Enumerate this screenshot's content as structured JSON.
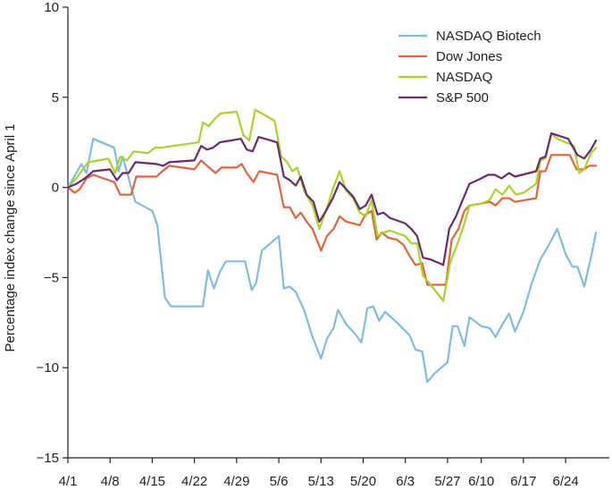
{
  "chart_data": {
    "type": "line",
    "title": "",
    "xlabel": "",
    "ylabel": "Percentage index change since April 1",
    "ylim": [
      -15,
      10
    ],
    "yticks": [
      10,
      5,
      0,
      -5,
      -10,
      -15
    ],
    "ytick_labels": [
      "10",
      "5",
      "0",
      "−5",
      "−10",
      "−15"
    ],
    "x_range": [
      0,
      61
    ],
    "xticks": [
      0,
      5,
      10,
      15,
      20,
      25,
      30,
      35,
      40,
      45,
      49,
      54,
      59
    ],
    "xtick_labels": [
      "4/1",
      "4/8",
      "4/15",
      "4/22",
      "4/29",
      "5/6",
      "5/13",
      "5/20",
      "6/3",
      "5/27",
      "6/10",
      "6/17",
      "6/24"
    ],
    "legend_position": "top-right",
    "series": [
      {
        "name": "NASDAQ Biotech",
        "color": "#7fbde0",
        "values": [
          [
            0,
            0
          ],
          [
            1,
            0.8
          ],
          [
            1.6,
            1.3
          ],
          [
            2.2,
            0.8
          ],
          [
            3,
            2.7
          ],
          [
            5.5,
            2.2
          ],
          [
            6,
            0.9
          ],
          [
            6.5,
            1.7
          ],
          [
            7.5,
            0
          ],
          [
            8,
            -0.8
          ],
          [
            10,
            -1.3
          ],
          [
            10.6,
            -2.1
          ],
          [
            11.5,
            -6.1
          ],
          [
            12.2,
            -6.6
          ],
          [
            16,
            -6.6
          ],
          [
            16.6,
            -4.6
          ],
          [
            17.3,
            -5.6
          ],
          [
            18,
            -4.7
          ],
          [
            18.7,
            -4.1
          ],
          [
            21,
            -4.1
          ],
          [
            21.8,
            -5.7
          ],
          [
            22.3,
            -5.3
          ],
          [
            23,
            -3.5
          ],
          [
            25,
            -2.7
          ],
          [
            25.6,
            -5.6
          ],
          [
            26.3,
            -5.5
          ],
          [
            27,
            -5.8
          ],
          [
            28,
            -6.8
          ],
          [
            29,
            -8.3
          ],
          [
            30,
            -9.5
          ],
          [
            30.7,
            -8.4
          ],
          [
            31.5,
            -7.8
          ],
          [
            32,
            -6.8
          ],
          [
            33,
            -7.6
          ],
          [
            34,
            -8.1
          ],
          [
            34.8,
            -8.6
          ],
          [
            35.5,
            -6.7
          ],
          [
            36.2,
            -6.6
          ],
          [
            36.9,
            -7.4
          ],
          [
            37.6,
            -6.9
          ],
          [
            39,
            -7.5
          ],
          [
            40.5,
            -8.2
          ],
          [
            41.2,
            -9.0
          ],
          [
            42,
            -9.1
          ],
          [
            42.6,
            -10.8
          ],
          [
            43.5,
            -10.3
          ],
          [
            45,
            -9.7
          ],
          [
            45.6,
            -7.7
          ],
          [
            46.2,
            -7.7
          ],
          [
            47,
            -8.8
          ],
          [
            47.6,
            -7.2
          ],
          [
            49,
            -7.7
          ],
          [
            50,
            -7.8
          ],
          [
            50.7,
            -8.3
          ],
          [
            51.5,
            -7.6
          ],
          [
            52.3,
            -7.0
          ],
          [
            53,
            -8.0
          ],
          [
            54,
            -6.9
          ],
          [
            55,
            -5.3
          ],
          [
            56,
            -4.0
          ],
          [
            57,
            -3.2
          ],
          [
            58,
            -2.3
          ],
          [
            59,
            -3.7
          ],
          [
            59.8,
            -4.4
          ],
          [
            60.4,
            -4.4
          ],
          [
            61.2,
            -5.5
          ],
          [
            62,
            -3.9
          ],
          [
            62.6,
            -2.5
          ]
        ]
      },
      {
        "name": "Dow Jones",
        "color": "#e4623c",
        "values": [
          [
            0,
            0
          ],
          [
            0.8,
            -0.3
          ],
          [
            1.4,
            -0.1
          ],
          [
            2.2,
            0.5
          ],
          [
            3,
            0.7
          ],
          [
            5.5,
            0.3
          ],
          [
            6.2,
            -0.4
          ],
          [
            7.5,
            -0.4
          ],
          [
            8.1,
            0.6
          ],
          [
            10.5,
            0.6
          ],
          [
            11.2,
            0.9
          ],
          [
            12,
            1.2
          ],
          [
            15,
            1.0
          ],
          [
            15.8,
            1.5
          ],
          [
            16.5,
            1.2
          ],
          [
            17.5,
            0.8
          ],
          [
            18.2,
            1.1
          ],
          [
            20,
            1.1
          ],
          [
            20.6,
            1.3
          ],
          [
            21.2,
            0.8
          ],
          [
            22,
            0.3
          ],
          [
            22.7,
            0.9
          ],
          [
            24.8,
            0.7
          ],
          [
            25.6,
            -1.1
          ],
          [
            26.3,
            -1.1
          ],
          [
            27,
            -1.7
          ],
          [
            27.6,
            -1.4
          ],
          [
            28.3,
            -1.9
          ],
          [
            29,
            -2.3
          ],
          [
            30,
            -3.5
          ],
          [
            30.7,
            -2.7
          ],
          [
            31.5,
            -2.3
          ],
          [
            32.2,
            -1.6
          ],
          [
            33,
            -1.9
          ],
          [
            33.8,
            -2.0
          ],
          [
            34.6,
            -2.1
          ],
          [
            35.3,
            -1.5
          ],
          [
            36,
            -1.3
          ],
          [
            36.6,
            -2.9
          ],
          [
            37.2,
            -2.5
          ],
          [
            38,
            -2.8
          ],
          [
            39,
            -2.9
          ],
          [
            39.8,
            -3.2
          ],
          [
            40.5,
            -3.8
          ],
          [
            41.2,
            -4.3
          ],
          [
            42,
            -4.2
          ],
          [
            42.6,
            -5.4
          ],
          [
            44.8,
            -5.4
          ],
          [
            45.5,
            -2.9
          ],
          [
            46.3,
            -2.3
          ],
          [
            47,
            -1.3
          ],
          [
            47.6,
            -1.0
          ],
          [
            49,
            -0.9
          ],
          [
            50,
            -0.8
          ],
          [
            50.7,
            -1.0
          ],
          [
            51.5,
            -0.6
          ],
          [
            52.3,
            -0.6
          ],
          [
            53,
            -0.8
          ],
          [
            55.5,
            -0.6
          ],
          [
            56,
            0.9
          ],
          [
            56.6,
            0.9
          ],
          [
            57.3,
            1.8
          ],
          [
            59.5,
            1.8
          ],
          [
            60.3,
            1.0
          ],
          [
            61.2,
            1.0
          ],
          [
            61.8,
            1.2
          ],
          [
            62.6,
            1.2
          ]
        ]
      },
      {
        "name": "NASDAQ",
        "color": "#a8d429",
        "values": [
          [
            0,
            0
          ],
          [
            1,
            0.5
          ],
          [
            1.6,
            0.9
          ],
          [
            2.4,
            1.4
          ],
          [
            4.8,
            1.6
          ],
          [
            5.6,
            0.8
          ],
          [
            6.2,
            1.7
          ],
          [
            7,
            1.5
          ],
          [
            7.8,
            2.0
          ],
          [
            9.5,
            1.9
          ],
          [
            10.3,
            2.2
          ],
          [
            11,
            2.2
          ],
          [
            15.5,
            2.5
          ],
          [
            16,
            3.6
          ],
          [
            16.7,
            3.4
          ],
          [
            17.4,
            3.8
          ],
          [
            18.1,
            4.1
          ],
          [
            20,
            4.2
          ],
          [
            20.8,
            2.9
          ],
          [
            21.5,
            2.6
          ],
          [
            22.2,
            4.3
          ],
          [
            23,
            4.1
          ],
          [
            24.5,
            3.7
          ],
          [
            25.3,
            1.7
          ],
          [
            26,
            1.4
          ],
          [
            26.6,
            0.9
          ],
          [
            27.2,
            1.1
          ],
          [
            28,
            -0.2
          ],
          [
            29,
            -1.0
          ],
          [
            29.8,
            -2.3
          ],
          [
            30.6,
            -1.3
          ],
          [
            31.4,
            -0.1
          ],
          [
            32.2,
            0.9
          ],
          [
            33,
            -0.2
          ],
          [
            33.8,
            -0.6
          ],
          [
            34.6,
            -1.4
          ],
          [
            35.3,
            -1.6
          ],
          [
            36,
            -0.7
          ],
          [
            36.7,
            -2.7
          ],
          [
            37.4,
            -2.5
          ],
          [
            38.2,
            -2.4
          ],
          [
            40,
            -2.7
          ],
          [
            40.7,
            -3.1
          ],
          [
            41.4,
            -3.1
          ],
          [
            42.1,
            -4.9
          ],
          [
            43,
            -5.4
          ],
          [
            44.5,
            -6.3
          ],
          [
            45.3,
            -4.2
          ],
          [
            46.2,
            -3.1
          ],
          [
            47,
            -2.0
          ],
          [
            47.6,
            -1.0
          ],
          [
            49,
            -0.9
          ],
          [
            50,
            -0.7
          ],
          [
            50.7,
            -0.1
          ],
          [
            51.5,
            -0.4
          ],
          [
            52.3,
            0.1
          ],
          [
            53.1,
            -0.4
          ],
          [
            54,
            -0.3
          ],
          [
            55.5,
            0.2
          ],
          [
            56,
            1.5
          ],
          [
            56.6,
            1.6
          ],
          [
            57.3,
            3.0
          ],
          [
            58,
            2.7
          ],
          [
            60,
            2.3
          ],
          [
            60.6,
            0.8
          ],
          [
            61.2,
            1.0
          ],
          [
            62,
            1.9
          ],
          [
            62.6,
            2.2
          ]
        ]
      },
      {
        "name": "S&P 500",
        "color": "#6b2a6e",
        "values": [
          [
            0,
            0
          ],
          [
            1,
            0.2
          ],
          [
            2,
            0.5
          ],
          [
            3,
            0.9
          ],
          [
            5,
            1.0
          ],
          [
            5.8,
            0.4
          ],
          [
            6.5,
            0.8
          ],
          [
            7.2,
            0.8
          ],
          [
            8,
            1.4
          ],
          [
            10.5,
            1.3
          ],
          [
            11.3,
            1.2
          ],
          [
            12,
            1.4
          ],
          [
            15,
            1.5
          ],
          [
            15.8,
            2.3
          ],
          [
            16.5,
            2.1
          ],
          [
            17.2,
            2.2
          ],
          [
            18,
            2.5
          ],
          [
            20.5,
            2.7
          ],
          [
            21.2,
            2.1
          ],
          [
            21.9,
            2.0
          ],
          [
            22.6,
            2.8
          ],
          [
            24.8,
            2.5
          ],
          [
            25.6,
            0.6
          ],
          [
            26.3,
            0.4
          ],
          [
            27,
            0.1
          ],
          [
            27.6,
            0.6
          ],
          [
            28.3,
            -0.4
          ],
          [
            29.1,
            -0.8
          ],
          [
            29.8,
            -1.9
          ],
          [
            30.6,
            -1.3
          ],
          [
            31.4,
            -0.6
          ],
          [
            32.2,
            0.3
          ],
          [
            33,
            -0.1
          ],
          [
            33.8,
            -0.5
          ],
          [
            34.6,
            -1.2
          ],
          [
            35.3,
            -1.0
          ],
          [
            36,
            -0.4
          ],
          [
            36.7,
            -1.5
          ],
          [
            37.4,
            -1.4
          ],
          [
            38.2,
            -1.7
          ],
          [
            40,
            -2.0
          ],
          [
            40.7,
            -2.3
          ],
          [
            41.4,
            -2.7
          ],
          [
            42.1,
            -3.9
          ],
          [
            43,
            -4.0
          ],
          [
            44.5,
            -4.3
          ],
          [
            45.2,
            -2.3
          ],
          [
            46,
            -1.6
          ],
          [
            46.7,
            -0.8
          ],
          [
            47.6,
            0.2
          ],
          [
            49,
            0.5
          ],
          [
            49.8,
            0.7
          ],
          [
            50.6,
            0.7
          ],
          [
            51.4,
            0.5
          ],
          [
            52.3,
            0.8
          ],
          [
            53,
            0.6
          ],
          [
            55.5,
            0.9
          ],
          [
            56,
            1.6
          ],
          [
            56.6,
            1.7
          ],
          [
            57.3,
            3.0
          ],
          [
            59.3,
            2.7
          ],
          [
            60.4,
            1.8
          ],
          [
            61.2,
            1.6
          ],
          [
            62,
            2.1
          ],
          [
            62.6,
            2.6
          ]
        ]
      }
    ]
  }
}
